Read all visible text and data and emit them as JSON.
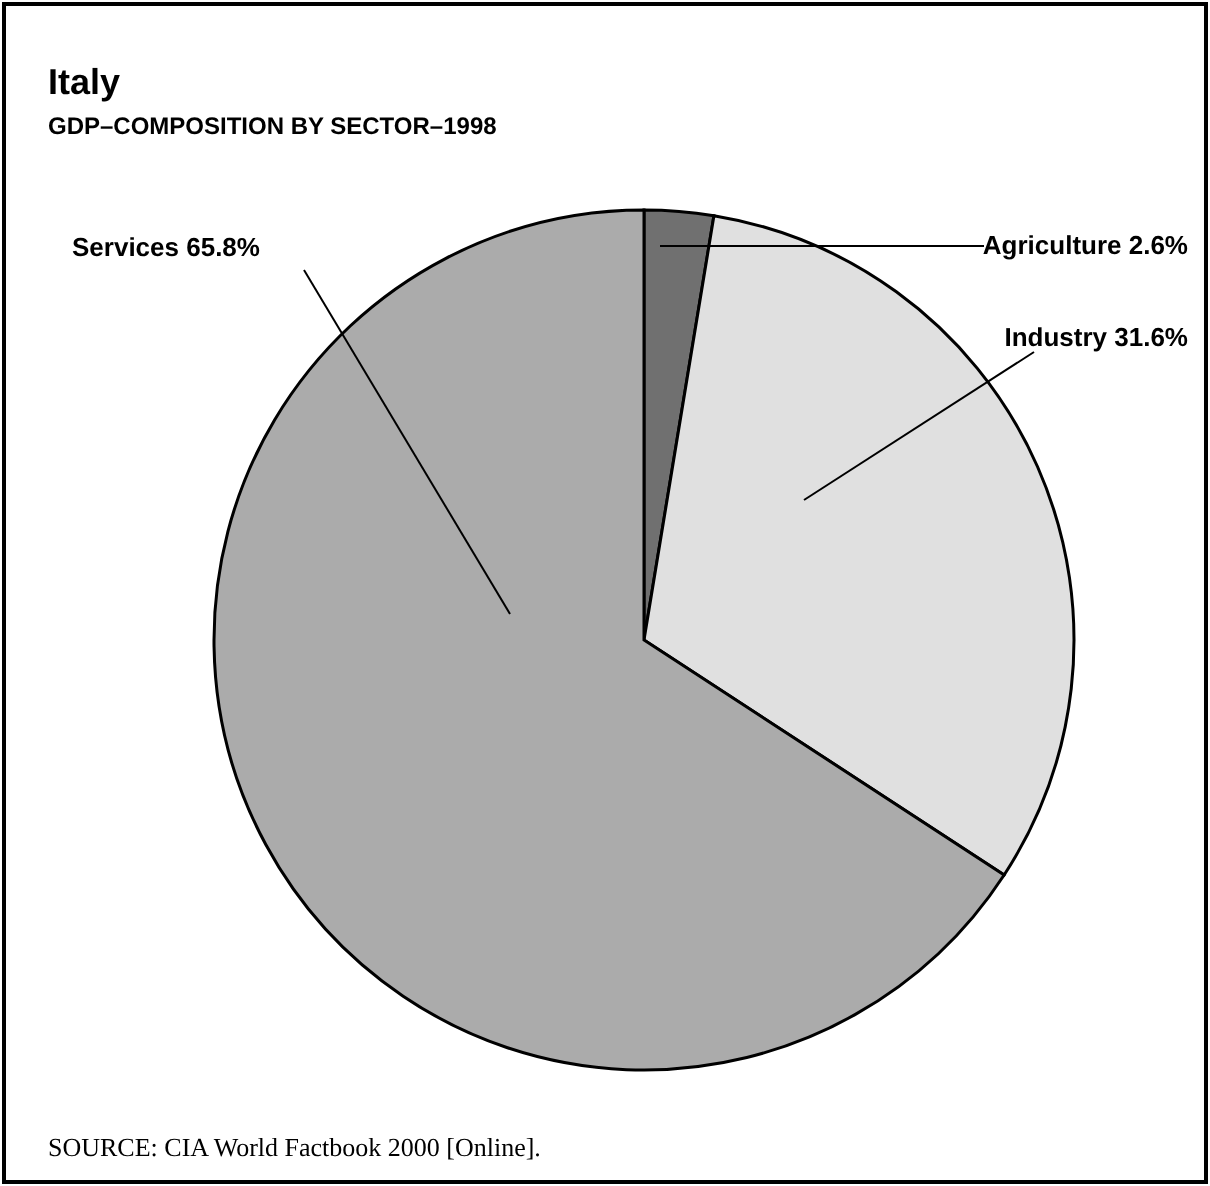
{
  "chart_data": {
    "type": "pie",
    "title": "Italy",
    "subtitle": "GDP–COMPOSITION BY SECTOR–1998",
    "categories": [
      "Agriculture",
      "Industry",
      "Services"
    ],
    "values": [
      2.6,
      31.6,
      65.8
    ],
    "value_labels": [
      "2.6%",
      "31.6%",
      "65.8%"
    ],
    "colors": [
      "#707070",
      "#e0e0e0",
      "#ababab"
    ],
    "annotations": [
      "SOURCE: CIA World Factbook 2000 [Online]."
    ]
  }
}
